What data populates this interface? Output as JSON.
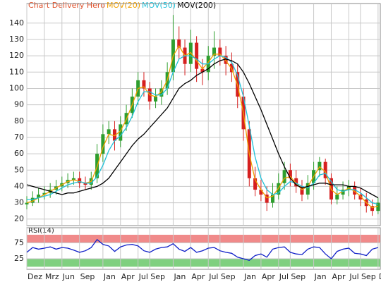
{
  "chart_data": [
    {
      "type": "candlestick",
      "title": "Chart Delivery Hero",
      "title_color": "#e0502a",
      "up_color": "#2e9e2e",
      "down_color": "#d62020",
      "grid": true,
      "x": [
        0,
        1,
        2,
        3,
        4,
        5,
        6,
        7,
        8,
        9,
        10,
        11,
        12,
        13,
        14,
        15,
        16,
        17,
        18,
        19,
        20,
        21,
        22,
        23,
        24,
        25,
        26,
        27,
        28,
        29,
        30,
        31,
        32,
        33,
        34,
        35,
        36,
        37,
        38,
        39,
        40,
        41,
        42,
        43,
        44,
        45,
        46,
        47,
        48,
        49,
        50,
        51,
        52,
        53,
        54,
        55,
        56,
        57,
        58,
        59,
        60
      ],
      "open": [
        29,
        30,
        33,
        35,
        36,
        38,
        40,
        42,
        44,
        45,
        42,
        41,
        45,
        60,
        72,
        75,
        68,
        78,
        85,
        95,
        105,
        100,
        92,
        95,
        100,
        110,
        130,
        125,
        115,
        128,
        112,
        110,
        120,
        125,
        120,
        115,
        110,
        95,
        75,
        45,
        38,
        35,
        30,
        35,
        42,
        50,
        45,
        40,
        35,
        42,
        50,
        55,
        45,
        32,
        35,
        38,
        40,
        35,
        32,
        28,
        25
      ],
      "high": [
        34,
        37,
        39,
        40,
        42,
        44,
        46,
        48,
        49,
        49,
        46,
        49,
        66,
        78,
        80,
        80,
        83,
        90,
        100,
        110,
        110,
        104,
        100,
        105,
        116,
        145,
        138,
        130,
        136,
        132,
        118,
        126,
        135,
        130,
        126,
        122,
        115,
        100,
        80,
        52,
        44,
        40,
        42,
        48,
        55,
        54,
        50,
        44,
        47,
        55,
        58,
        57,
        48,
        40,
        43,
        44,
        43,
        39,
        36,
        32,
        33
      ],
      "low": [
        26,
        28,
        30,
        32,
        33,
        35,
        37,
        39,
        41,
        39,
        38,
        38,
        42,
        55,
        66,
        62,
        64,
        74,
        82,
        90,
        95,
        87,
        88,
        90,
        96,
        105,
        118,
        108,
        110,
        104,
        102,
        105,
        112,
        114,
        108,
        104,
        88,
        68,
        40,
        34,
        31,
        25,
        27,
        32,
        38,
        40,
        36,
        31,
        32,
        38,
        46,
        41,
        29,
        29,
        32,
        34,
        32,
        28,
        24,
        22,
        23
      ],
      "close": [
        30,
        33,
        35,
        36,
        38,
        40,
        42,
        44,
        45,
        42,
        41,
        45,
        60,
        72,
        75,
        68,
        78,
        85,
        95,
        105,
        100,
        92,
        95,
        100,
        110,
        130,
        125,
        115,
        128,
        112,
        110,
        120,
        125,
        120,
        115,
        110,
        95,
        75,
        45,
        38,
        35,
        30,
        35,
        42,
        50,
        45,
        40,
        35,
        42,
        50,
        55,
        45,
        32,
        35,
        38,
        40,
        35,
        32,
        28,
        25,
        30
      ],
      "series": [
        {
          "name": "MOV(20)",
          "color": "#f0a000",
          "values": [
            30,
            31,
            33,
            35,
            37,
            39,
            41,
            43,
            44,
            43,
            42,
            43,
            52,
            64,
            72,
            71,
            74,
            81,
            90,
            100,
            101,
            96,
            95,
            98,
            105,
            120,
            126,
            120,
            122,
            117,
            112,
            116,
            121,
            121,
            117,
            112,
            102,
            85,
            60,
            44,
            38,
            33,
            34,
            39,
            45,
            46,
            42,
            38,
            40,
            46,
            52,
            49,
            38,
            35,
            37,
            39,
            37,
            34,
            30,
            27,
            28
          ]
        },
        {
          "name": "MOV(50)",
          "color": "#20c0d8",
          "values": [
            32,
            32,
            33,
            34,
            35,
            37,
            39,
            41,
            42,
            43,
            42,
            42,
            46,
            53,
            62,
            68,
            71,
            76,
            83,
            92,
            98,
            98,
            96,
            96,
            100,
            110,
            118,
            120,
            120,
            118,
            115,
            115,
            118,
            120,
            119,
            116,
            108,
            95,
            77,
            58,
            45,
            38,
            35,
            36,
            40,
            43,
            42,
            40,
            39,
            42,
            47,
            48,
            43,
            38,
            37,
            38,
            38,
            36,
            33,
            30,
            29
          ]
        },
        {
          "name": "MOV(200)",
          "color": "#000000",
          "values": [
            41,
            40,
            39,
            38,
            37,
            36,
            35,
            36,
            36,
            37,
            38,
            39,
            40,
            42,
            45,
            50,
            55,
            60,
            65,
            69,
            72,
            76,
            80,
            84,
            88,
            94,
            100,
            103,
            105,
            108,
            110,
            112,
            115,
            117,
            118,
            117,
            115,
            110,
            103,
            95,
            87,
            78,
            69,
            60,
            52,
            45,
            41,
            39,
            40,
            41,
            42,
            42,
            41,
            41,
            41,
            40,
            40,
            39,
            37,
            35,
            33
          ]
        }
      ],
      "xlim": [
        0,
        60.5
      ],
      "ylim": [
        16,
        152
      ],
      "yticks": [
        20,
        30,
        40,
        50,
        60,
        70,
        80,
        90,
        100,
        110,
        120,
        130,
        140
      ]
    },
    {
      "type": "line",
      "title": "RSI(14)",
      "grid": true,
      "x": [
        0,
        1,
        2,
        3,
        4,
        5,
        6,
        7,
        8,
        9,
        10,
        11,
        12,
        13,
        14,
        15,
        16,
        17,
        18,
        19,
        20,
        21,
        22,
        23,
        24,
        25,
        26,
        27,
        28,
        29,
        30,
        31,
        32,
        33,
        34,
        35,
        36,
        37,
        38,
        39,
        40,
        41,
        42,
        43,
        44,
        45,
        46,
        47,
        48,
        49,
        50,
        51,
        52,
        53,
        54,
        55,
        56,
        57,
        58,
        59,
        60
      ],
      "series": [
        {
          "name": "RSI(14)",
          "color": "#1020c8",
          "values": [
            45,
            60,
            55,
            58,
            62,
            55,
            60,
            58,
            52,
            45,
            50,
            60,
            85,
            70,
            65,
            48,
            62,
            68,
            70,
            65,
            50,
            45,
            55,
            60,
            62,
            72,
            55,
            48,
            60,
            45,
            50,
            58,
            60,
            50,
            45,
            42,
            30,
            25,
            20,
            35,
            40,
            30,
            55,
            60,
            62,
            45,
            40,
            38,
            55,
            62,
            60,
            40,
            25,
            48,
            55,
            58,
            42,
            40,
            35,
            55,
            60
          ]
        }
      ],
      "bands": [
        {
          "from": 75,
          "to": 100,
          "color": "#f08a8a"
        },
        {
          "from": 0,
          "to": 25,
          "color": "#7fd07f"
        }
      ],
      "xlim": [
        0,
        60.5
      ],
      "ylim": [
        -8,
        122
      ],
      "yticks": [
        25,
        75
      ],
      "xticks": [
        {
          "value": 0,
          "label": "Dez"
        },
        {
          "value": 3,
          "label": "Mrz"
        },
        {
          "value": 6,
          "label": "Jun"
        },
        {
          "value": 9,
          "label": "Sep"
        },
        {
          "value": 13,
          "label": "Jan"
        },
        {
          "value": 16,
          "label": "Apr"
        },
        {
          "value": 19,
          "label": "Jul"
        },
        {
          "value": 21,
          "label": "Sep"
        },
        {
          "value": 25,
          "label": "Jan"
        },
        {
          "value": 28,
          "label": "Apr"
        },
        {
          "value": 31,
          "label": "Jul"
        },
        {
          "value": 33,
          "label": "Sep"
        },
        {
          "value": 37,
          "label": "Jan"
        },
        {
          "value": 40,
          "label": "Apr"
        },
        {
          "value": 43,
          "label": "Jul"
        },
        {
          "value": 45,
          "label": "Sep"
        },
        {
          "value": 49,
          "label": "Jan"
        },
        {
          "value": 52,
          "label": "Apr"
        },
        {
          "value": 55,
          "label": "Jul"
        },
        {
          "value": 57,
          "label": "Sep"
        },
        {
          "value": 60,
          "label": "D"
        }
      ]
    }
  ]
}
